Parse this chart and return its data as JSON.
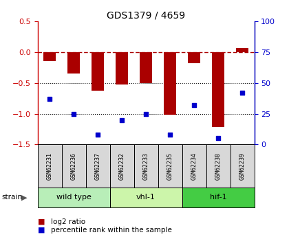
{
  "title": "GDS1379 / 4659",
  "samples": [
    "GSM62231",
    "GSM62236",
    "GSM62237",
    "GSM62232",
    "GSM62233",
    "GSM62235",
    "GSM62234",
    "GSM62238",
    "GSM62239"
  ],
  "log2_ratio": [
    -0.15,
    -0.35,
    -0.62,
    -0.52,
    -0.5,
    -1.02,
    -0.18,
    -1.22,
    0.07
  ],
  "percentile_rank": [
    37,
    25,
    8,
    20,
    25,
    8,
    32,
    5,
    42
  ],
  "groups": [
    {
      "label": "wild type",
      "indices": [
        0,
        1,
        2
      ],
      "color": "#b8eeb8"
    },
    {
      "label": "vhl-1",
      "indices": [
        3,
        4,
        5
      ],
      "color": "#ccf5aa"
    },
    {
      "label": "hif-1",
      "indices": [
        6,
        7,
        8
      ],
      "color": "#44cc44"
    }
  ],
  "ylim_left": [
    -1.5,
    0.5
  ],
  "ylim_right": [
    0,
    100
  ],
  "yticks_left": [
    -1.5,
    -1.0,
    -0.5,
    0.0,
    0.5
  ],
  "yticks_right": [
    0,
    25,
    50,
    75,
    100
  ],
  "bar_color": "#aa0000",
  "dot_color": "#0000cc",
  "hline_y": 0.0,
  "dotted_lines": [
    -0.5,
    -1.0
  ],
  "legend_bar_label": "log2 ratio",
  "legend_dot_label": "percentile rank within the sample"
}
